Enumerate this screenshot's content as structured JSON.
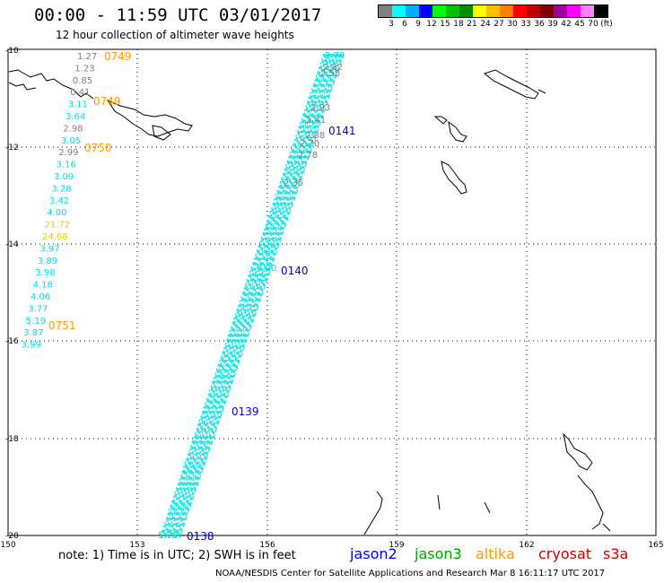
{
  "header": {
    "title": "00:00 - 11:59 UTC 03/01/2017",
    "subtitle": "12 hour collection of altimeter wave heights"
  },
  "legend": {
    "colors": [
      "#808080",
      "#00ffff",
      "#00b0ff",
      "#0000ff",
      "#00ff00",
      "#00c000",
      "#009000",
      "#ffff00",
      "#ffc000",
      "#ff8000",
      "#ff0000",
      "#c00000",
      "#800000",
      "#a000a0",
      "#ff00ff",
      "#ff80ff",
      "#000000"
    ],
    "labels": [
      "3",
      "6",
      "9",
      "12",
      "15",
      "18",
      "21",
      "24",
      "27",
      "30",
      "33",
      "36",
      "39",
      "42",
      "45",
      "70",
      "(ft)"
    ]
  },
  "axes": {
    "lat_labels": [
      "-10",
      "-12",
      "-14",
      "-16",
      "-18",
      "-20"
    ],
    "lon_labels": [
      "150",
      "153",
      "156",
      "159",
      "162",
      "165"
    ]
  },
  "orbit_labels": {
    "left": [
      {
        "text": "0749",
        "color": "#ff9900"
      },
      {
        "text": "0749",
        "color": "#ff9900"
      },
      {
        "text": "0750",
        "color": "#ff9900"
      },
      {
        "text": "0751",
        "color": "#ff9900"
      }
    ],
    "right": [
      {
        "text": "0141",
        "color": "#0000dd"
      },
      {
        "text": "0140",
        "color": "#0000dd"
      },
      {
        "text": "0139",
        "color": "#0000dd"
      },
      {
        "text": "0138",
        "color": "#0000dd"
      }
    ]
  },
  "track_left_values": [
    {
      "text": "1.27",
      "color": "#808080"
    },
    {
      "text": "1.23",
      "color": "#808080"
    },
    {
      "text": "0.85",
      "color": "#808080"
    },
    {
      "text": "0.41",
      "color": "#808080"
    },
    {
      "text": "3.11",
      "color": "#00e0e0"
    },
    {
      "text": "3.64",
      "color": "#00e0e0"
    },
    {
      "text": "2.98",
      "color": "#808080"
    },
    {
      "text": "3.05",
      "color": "#00e0e0"
    },
    {
      "text": "2.99",
      "color": "#808080"
    },
    {
      "text": "3.16",
      "color": "#00e0e0"
    },
    {
      "text": "3.09",
      "color": "#00e0e0"
    },
    {
      "text": "3.28",
      "color": "#00e0e0"
    },
    {
      "text": "3.42",
      "color": "#00e0e0"
    },
    {
      "text": "4.00",
      "color": "#00e0e0"
    },
    {
      "text": "21.72",
      "color": "#e0d000"
    },
    {
      "text": "24.68",
      "color": "#e0d000"
    },
    {
      "text": "3.97",
      "color": "#00e0e0"
    },
    {
      "text": "3.89",
      "color": "#00e0e0"
    },
    {
      "text": "3.98",
      "color": "#00e0e0"
    },
    {
      "text": "4.18",
      "color": "#00e0e0"
    },
    {
      "text": "4.06",
      "color": "#00e0e0"
    },
    {
      "text": "3.77",
      "color": "#00e0e0"
    },
    {
      "text": "5.19",
      "color": "#00e0e0"
    },
    {
      "text": "3.87",
      "color": "#00e0e0"
    },
    {
      "text": "3.99",
      "color": "#00e0e0"
    }
  ],
  "track_right_top_values": [
    {
      "text": "2.70",
      "color": "#00e0e0"
    },
    {
      "text": "2.82",
      "color": "#808080"
    },
    {
      "text": "2.58",
      "color": "#808080"
    },
    {
      "text": "2.93",
      "color": "#808080"
    },
    {
      "text": "2.41",
      "color": "#808080"
    },
    {
      "text": "2.88",
      "color": "#808080"
    },
    {
      "text": "2.70",
      "color": "#808080"
    },
    {
      "text": "2.78",
      "color": "#808080"
    },
    {
      "text": "2.35",
      "color": "#808080"
    },
    {
      "text": "3.00",
      "color": "#00e0e0"
    },
    {
      "text": "5.79",
      "color": "#00e0e0"
    }
  ],
  "footer": {
    "note": "note: 1) Time is in UTC; 2) SWH is in feet",
    "satellites": [
      {
        "name": "jason2",
        "color": "#0000ff"
      },
      {
        "name": "jason3",
        "color": "#00a000"
      },
      {
        "name": "altika",
        "color": "#ff9900"
      },
      {
        "name": "cryosat",
        "color": "#cc0000"
      },
      {
        "name": "s3a",
        "color": "#cc0000"
      }
    ],
    "credit": "NOAA/NESDIS Center for Satellite Applications and Research    Mar  8 16:11:17 UTC 2017"
  }
}
